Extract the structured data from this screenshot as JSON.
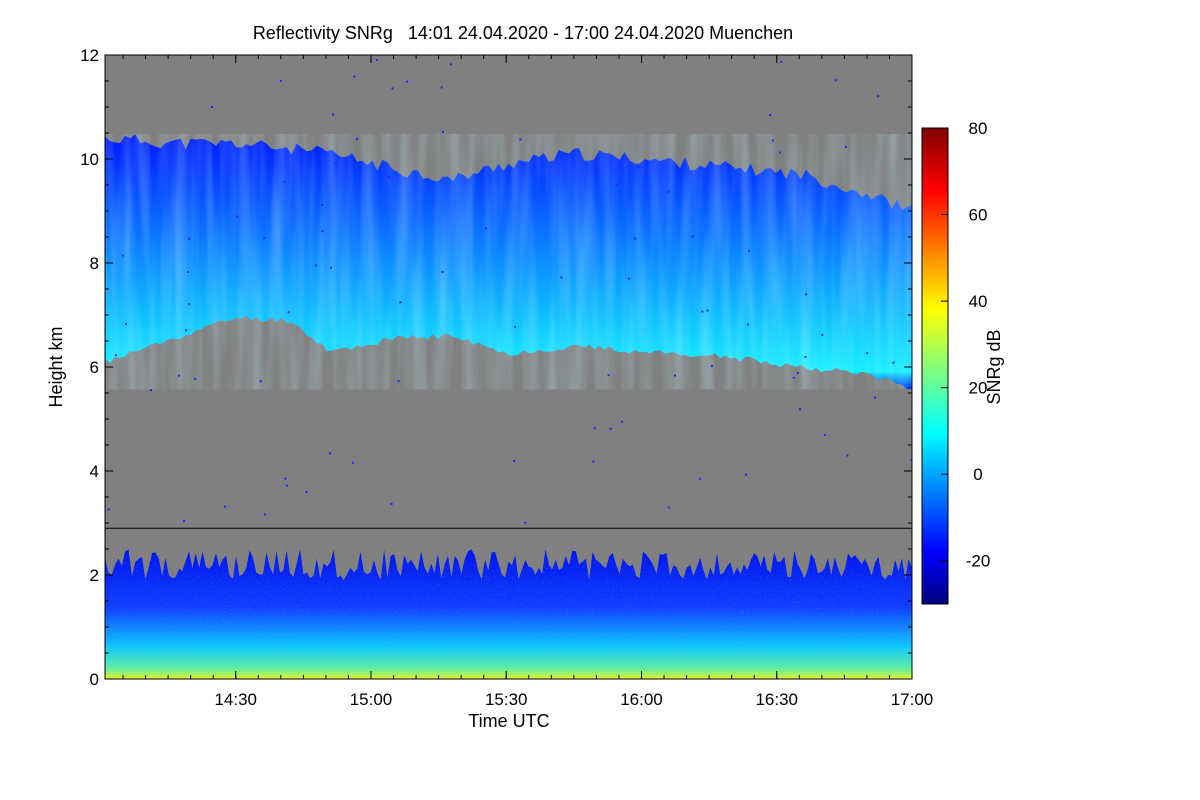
{
  "chart_data": {
    "type": "heatmap",
    "title": "Reflectivity SNRg   14:01 24.04.2020 - 17:00 24.04.2020 Muenchen",
    "xlabel": "Time UTC",
    "ylabel": "Height km",
    "colorbar_label": "SNRg dB",
    "x_range_hours": [
      14.0167,
      17.0
    ],
    "y_range_km": [
      0,
      12
    ],
    "x_ticks": [
      {
        "label": "14:30",
        "value": 14.5
      },
      {
        "label": "15:00",
        "value": 15.0
      },
      {
        "label": "15:30",
        "value": 15.5
      },
      {
        "label": "16:00",
        "value": 16.0
      },
      {
        "label": "16:30",
        "value": 16.5
      },
      {
        "label": "17:00",
        "value": 17.0
      }
    ],
    "y_ticks": [
      {
        "label": "0",
        "value": 0
      },
      {
        "label": "2",
        "value": 2
      },
      {
        "label": "4",
        "value": 4
      },
      {
        "label": "6",
        "value": 6
      },
      {
        "label": "8",
        "value": 8
      },
      {
        "label": "10",
        "value": 10
      },
      {
        "label": "12",
        "value": 12
      }
    ],
    "colorbar_range_db": [
      -30,
      80
    ],
    "colorbar_ticks": [
      {
        "label": "-20",
        "value": -20
      },
      {
        "label": "0",
        "value": 0
      },
      {
        "label": "20",
        "value": 20
      },
      {
        "label": "40",
        "value": 40
      },
      {
        "label": "60",
        "value": 60
      },
      {
        "label": "80",
        "value": 80
      }
    ],
    "split_height_km": 2.9,
    "no_data_color": "#808080",
    "cirrus_layer": {
      "description": "upper cloud layer",
      "time": [
        14.02,
        14.3,
        14.5,
        14.7,
        14.85,
        15.1,
        15.3,
        15.5,
        15.75,
        16.0,
        16.3,
        16.6,
        16.85,
        17.0
      ],
      "top_km": [
        10.4,
        10.3,
        10.3,
        10.2,
        10.1,
        9.8,
        9.6,
        9.9,
        10.1,
        10.0,
        9.85,
        9.7,
        9.3,
        9.0
      ],
      "base_km": [
        6.1,
        6.6,
        6.95,
        6.9,
        6.3,
        6.55,
        6.6,
        6.25,
        6.4,
        6.3,
        6.2,
        6.0,
        5.85,
        5.6
      ],
      "peak_snr_db": 15
    },
    "boundary_layer": {
      "description": "low-level echo",
      "top_km": 2.6,
      "peak_snr_db": 38
    }
  }
}
